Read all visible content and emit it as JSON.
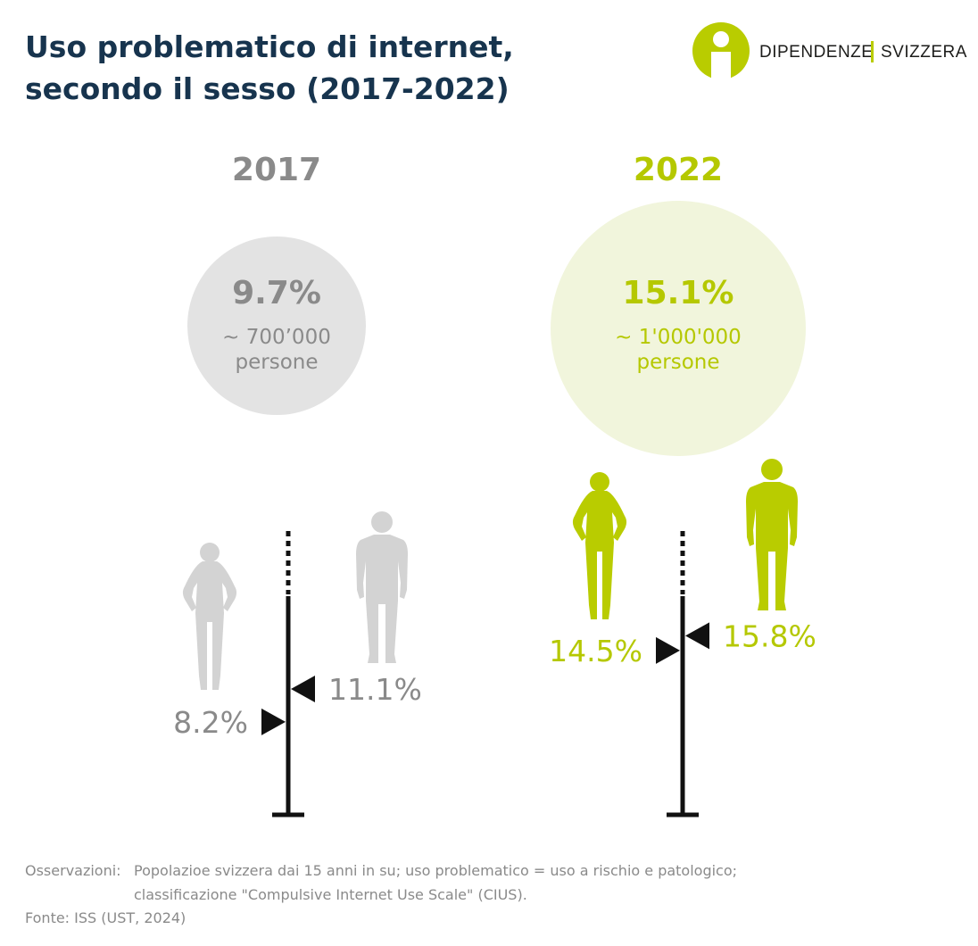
{
  "title_lines": [
    "Uso problematico di internet,",
    "secondo il sesso (2017-2022)"
  ],
  "logo": {
    "left": "DIPENDENZE",
    "right": "SVIZZERA"
  },
  "panels": [
    {
      "year": "2017",
      "share": "9.7%",
      "people": [
        "~ 700’000",
        "persone"
      ],
      "women": {
        "value": 8.2,
        "label": "8.2%"
      },
      "men": {
        "value": 11.1,
        "label": "11.1%"
      }
    },
    {
      "year": "2022",
      "share": "15.1%",
      "people": [
        "~ 1'000'000",
        "persone"
      ],
      "women": {
        "value": 14.5,
        "label": "14.5%"
      },
      "men": {
        "value": 15.8,
        "label": "15.8%"
      }
    }
  ],
  "notes": {
    "label": "Osservazioni:",
    "lines": [
      "Popolazioe svizzera dai 15 anni in su; uso problematico = uso a rischio e patologico;",
      "classificazione \"Compulsive Internet Use Scale\" (CIUS)."
    ],
    "source": "Fonte: ISS (UST, 2024)"
  }
}
